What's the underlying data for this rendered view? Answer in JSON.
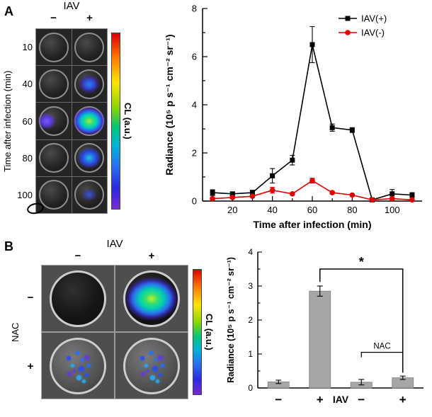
{
  "panel_a": {
    "label": "A",
    "imaging": {
      "title": "IAV",
      "col_labels": [
        "−",
        "+"
      ],
      "y_axis_label": "Time after infection (min)",
      "row_labels": [
        "10",
        "40",
        "60",
        "80",
        "100"
      ],
      "colorbar_label": "CL (a.u.)",
      "wells": [
        {
          "time": "10",
          "minus": "none",
          "plus": "none"
        },
        {
          "time": "40",
          "minus": "none",
          "plus": "blue-medium"
        },
        {
          "time": "60",
          "minus": "edge-purple",
          "plus": "high-green"
        },
        {
          "time": "80",
          "minus": "none",
          "plus": "blue-bright"
        },
        {
          "time": "100",
          "minus": "none",
          "plus": "blue-faint"
        }
      ]
    }
  },
  "panel_b": {
    "label": "B",
    "imaging": {
      "title": "IAV",
      "col_labels": [
        "−",
        "+"
      ],
      "row_axis_label": "NAC",
      "colorbar_label": "CL (a.u.)",
      "rows": [
        {
          "nac": "−",
          "wells": [
            "none",
            "high-green-large"
          ]
        },
        {
          "nac": "+",
          "wells": [
            "speckle",
            "speckle"
          ]
        }
      ]
    }
  },
  "chart_data": [
    {
      "id": "timecourse",
      "type": "line",
      "x": [
        10,
        20,
        30,
        40,
        50,
        60,
        70,
        80,
        90,
        100,
        110
      ],
      "series": [
        {
          "name": "IAV(+)",
          "color": "#000000",
          "marker": "square",
          "values": [
            0.35,
            0.3,
            0.35,
            1.05,
            1.7,
            6.5,
            3.05,
            2.95,
            0.05,
            0.3,
            0.25
          ],
          "errors": [
            0.12,
            0.08,
            0.1,
            0.3,
            0.2,
            0.75,
            0.15,
            0.1,
            0.05,
            0.18,
            0.1
          ]
        },
        {
          "name": "IAV(-)",
          "color": "#e00000",
          "marker": "circle",
          "values": [
            0.1,
            0.15,
            0.2,
            0.45,
            0.3,
            0.85,
            0.35,
            0.25,
            0.05,
            0.1,
            0.05
          ],
          "errors": [
            0.05,
            0.05,
            0.05,
            0.12,
            0.05,
            0.1,
            0.05,
            0.05,
            0.03,
            0.05,
            0.03
          ]
        }
      ],
      "title": "",
      "xlabel": "Time after infection (min)",
      "ylabel": "Radiance (10⁵ p s⁻¹ cm⁻² sr⁻¹)",
      "xlim": [
        5,
        115
      ],
      "ylim": [
        0,
        8
      ],
      "xticks": [
        20,
        40,
        60,
        80,
        100
      ],
      "yticks": [
        0,
        2,
        4,
        6,
        8
      ],
      "grid": false,
      "legend_position": "top-right"
    },
    {
      "id": "bars",
      "type": "bar",
      "categories": [
        "−",
        "+",
        "−",
        "+"
      ],
      "values": [
        0.18,
        2.85,
        0.17,
        0.3
      ],
      "errors": [
        0.05,
        0.15,
        0.08,
        0.05
      ],
      "bar_color": "#a6a6a6",
      "title": "",
      "xlabel": "IAV",
      "ylabel": "Radiance (10⁵ p s⁻¹ cm⁻² sr⁻¹)",
      "ylim": [
        0,
        4
      ],
      "yticks": [
        0,
        1,
        2,
        3,
        4
      ],
      "grid": false,
      "annotations": {
        "significance": {
          "label": "*",
          "from_bar": 1,
          "to_bar": 3,
          "y": 3.5
        },
        "group_bracket": {
          "label": "NAC",
          "from_bar": 2,
          "to_bar": 3,
          "y": 1.05
        }
      }
    }
  ]
}
